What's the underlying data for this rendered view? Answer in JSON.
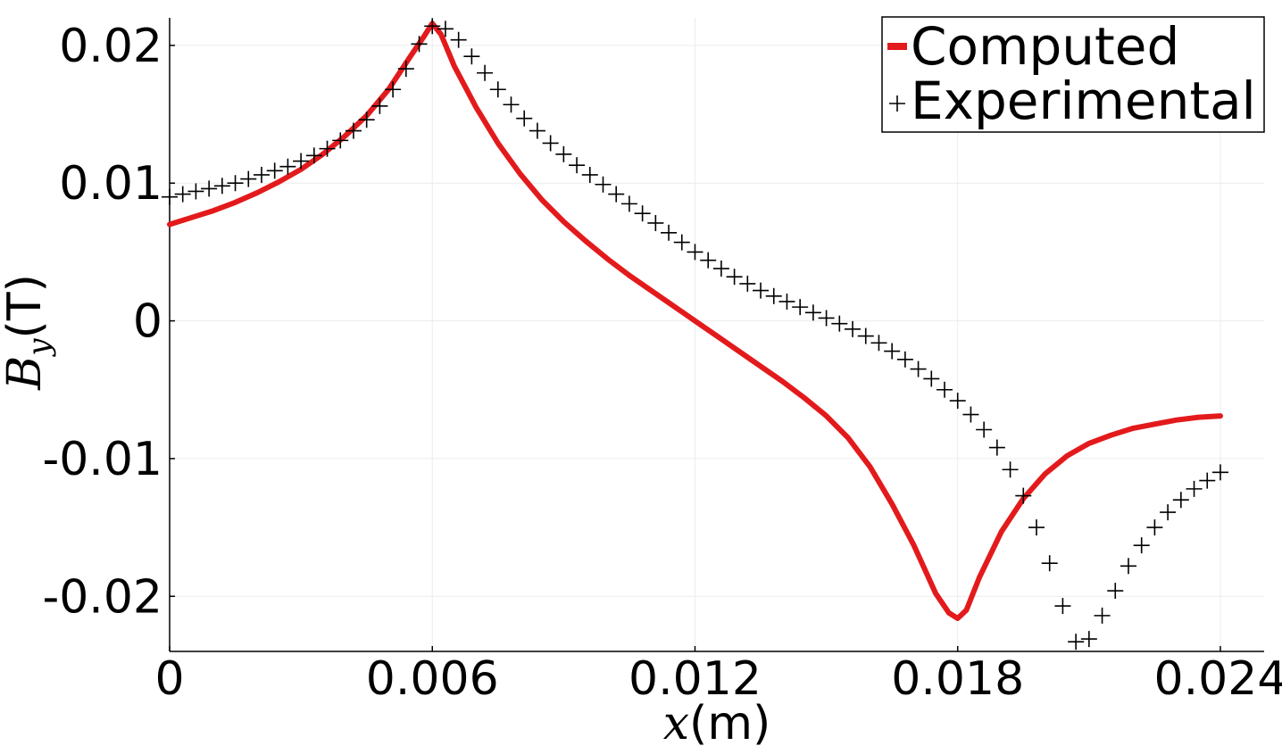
{
  "chart_data": {
    "type": "line",
    "xlabel_var": "x",
    "xlabel_unit": "(m)",
    "ylabel_var": "B",
    "ylabel_sub": "y",
    "ylabel_unit": "(T)",
    "xlim": [
      0,
      0.025
    ],
    "ylim": [
      -0.024,
      0.022
    ],
    "x_ticks": [
      0,
      0.006,
      0.012,
      0.018,
      0.024
    ],
    "x_tick_labels": [
      "0",
      "0.006",
      "0.012",
      "0.018",
      "0.024"
    ],
    "y_ticks": [
      -0.02,
      -0.01,
      0,
      0.01,
      0.02
    ],
    "y_tick_labels": [
      "-0.02",
      "-0.01",
      "0",
      "0.01",
      "0.02"
    ],
    "grid": true,
    "legend_position": "top-right",
    "series": [
      {
        "name": "Computed",
        "style": "line",
        "color": "#e31a1c",
        "x": [
          0,
          0.0005,
          0.001,
          0.0015,
          0.002,
          0.0025,
          0.003,
          0.0035,
          0.004,
          0.0045,
          0.005,
          0.0055,
          0.0058,
          0.006,
          0.0062,
          0.0065,
          0.007,
          0.0075,
          0.008,
          0.0085,
          0.009,
          0.0095,
          0.01,
          0.0105,
          0.011,
          0.0115,
          0.012,
          0.0125,
          0.013,
          0.0135,
          0.014,
          0.0145,
          0.015,
          0.0155,
          0.016,
          0.0165,
          0.017,
          0.0175,
          0.0178,
          0.018,
          0.0182,
          0.0185,
          0.019,
          0.0195,
          0.02,
          0.0205,
          0.021,
          0.0215,
          0.022,
          0.0225,
          0.023,
          0.0235,
          0.024
        ],
        "y": [
          0.007,
          0.0075,
          0.008,
          0.0086,
          0.0093,
          0.0101,
          0.011,
          0.0121,
          0.0134,
          0.0149,
          0.0168,
          0.0192,
          0.0206,
          0.0216,
          0.0208,
          0.0185,
          0.0155,
          0.0129,
          0.0107,
          0.0088,
          0.0072,
          0.0058,
          0.0045,
          0.0033,
          0.0022,
          0.0011,
          0.0,
          -0.0011,
          -0.0022,
          -0.0033,
          -0.0044,
          -0.0056,
          -0.0069,
          -0.0085,
          -0.0106,
          -0.0133,
          -0.0163,
          -0.0198,
          -0.0212,
          -0.0216,
          -0.021,
          -0.0186,
          -0.0153,
          -0.0129,
          -0.0111,
          -0.0098,
          -0.0089,
          -0.0083,
          -0.0078,
          -0.0075,
          -0.0072,
          -0.007,
          -0.0069
        ]
      },
      {
        "name": "Experimental",
        "style": "plus-markers",
        "color": "#000000",
        "x": [
          0,
          0.0003,
          0.0006,
          0.0009,
          0.0012,
          0.0015,
          0.0018,
          0.0021,
          0.0024,
          0.0027,
          0.003,
          0.0033,
          0.0036,
          0.0039,
          0.0042,
          0.0045,
          0.0048,
          0.0051,
          0.0054,
          0.0057,
          0.006,
          0.0063,
          0.0066,
          0.0069,
          0.0072,
          0.0075,
          0.0078,
          0.0081,
          0.0084,
          0.0087,
          0.009,
          0.0093,
          0.0096,
          0.0099,
          0.0102,
          0.0105,
          0.0108,
          0.0111,
          0.0114,
          0.0117,
          0.012,
          0.0123,
          0.0126,
          0.0129,
          0.0132,
          0.0135,
          0.0138,
          0.0141,
          0.0144,
          0.0147,
          0.015,
          0.0153,
          0.0156,
          0.0159,
          0.0162,
          0.0165,
          0.0168,
          0.0171,
          0.0174,
          0.0177,
          0.018,
          0.0183,
          0.0186,
          0.0189,
          0.0192,
          0.0195,
          0.0198,
          0.0201,
          0.0204,
          0.0207,
          0.021,
          0.0213,
          0.0216,
          0.0219,
          0.0222,
          0.0225,
          0.0228,
          0.0231,
          0.0234,
          0.0237,
          0.024
        ],
        "y": [
          0.009,
          0.0092,
          0.0094,
          0.0096,
          0.0098,
          0.01,
          0.0103,
          0.0106,
          0.0109,
          0.0112,
          0.0116,
          0.012,
          0.0125,
          0.0131,
          0.0138,
          0.0146,
          0.0156,
          0.0168,
          0.0183,
          0.0201,
          0.0214,
          0.0212,
          0.0204,
          0.0192,
          0.018,
          0.0168,
          0.0157,
          0.0147,
          0.0138,
          0.0129,
          0.0121,
          0.0113,
          0.0106,
          0.0099,
          0.0092,
          0.0085,
          0.0078,
          0.0071,
          0.0064,
          0.0057,
          0.005,
          0.0044,
          0.0038,
          0.0032,
          0.0027,
          0.0022,
          0.0018,
          0.0014,
          0.001,
          0.0006,
          0.0002,
          -0.0002,
          -0.0006,
          -0.0011,
          -0.0016,
          -0.0022,
          -0.0028,
          -0.0035,
          -0.0042,
          -0.005,
          -0.0058,
          -0.0068,
          -0.0079,
          -0.0092,
          -0.0108,
          -0.0127,
          -0.015,
          -0.0176,
          -0.0207,
          -0.0233,
          -0.0231,
          -0.0214,
          -0.0196,
          -0.0178,
          -0.0163,
          -0.015,
          -0.0139,
          -0.013,
          -0.0122,
          -0.0116,
          -0.011
        ]
      }
    ]
  }
}
